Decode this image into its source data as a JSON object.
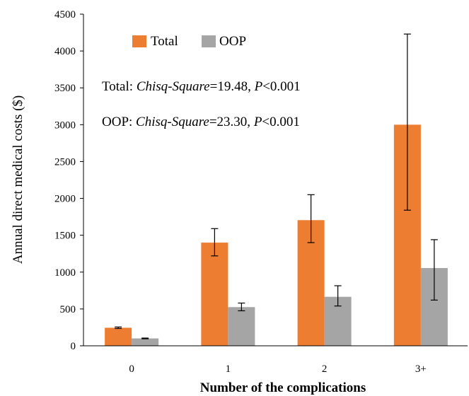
{
  "chart_data": {
    "type": "bar",
    "categories": [
      "0",
      "1",
      "2",
      "3+"
    ],
    "series": [
      {
        "name": "Total",
        "color": "#ED7D31",
        "values": [
          245,
          1400,
          1705,
          3000
        ],
        "error_low": [
          235,
          1220,
          1400,
          1840
        ],
        "error_high": [
          255,
          1590,
          2050,
          4230
        ]
      },
      {
        "name": "OOP",
        "color": "#A5A5A5",
        "values": [
          100,
          525,
          665,
          1055
        ],
        "error_low": [
          95,
          475,
          540,
          620
        ],
        "error_high": [
          105,
          580,
          815,
          1440
        ]
      }
    ],
    "xlabel": "Number of the complications",
    "ylabel": "Annual direct medical costs ($)",
    "ylim": [
      0,
      4500
    ],
    "yticks": [
      0,
      500,
      1000,
      1500,
      2000,
      2500,
      3000,
      3500,
      4000,
      4500
    ],
    "grid": false,
    "legend_position": "top-left",
    "annotations": [
      {
        "prefix": "Total: ",
        "stat": "Chisq-Square",
        "stat_value": "=19.48, ",
        "p": "P",
        "p_value": "<0.001"
      },
      {
        "prefix": "OOP: ",
        "stat": "Chisq-Square",
        "stat_value": "=23.30, ",
        "p": "P",
        "p_value": "<0.001"
      }
    ]
  }
}
